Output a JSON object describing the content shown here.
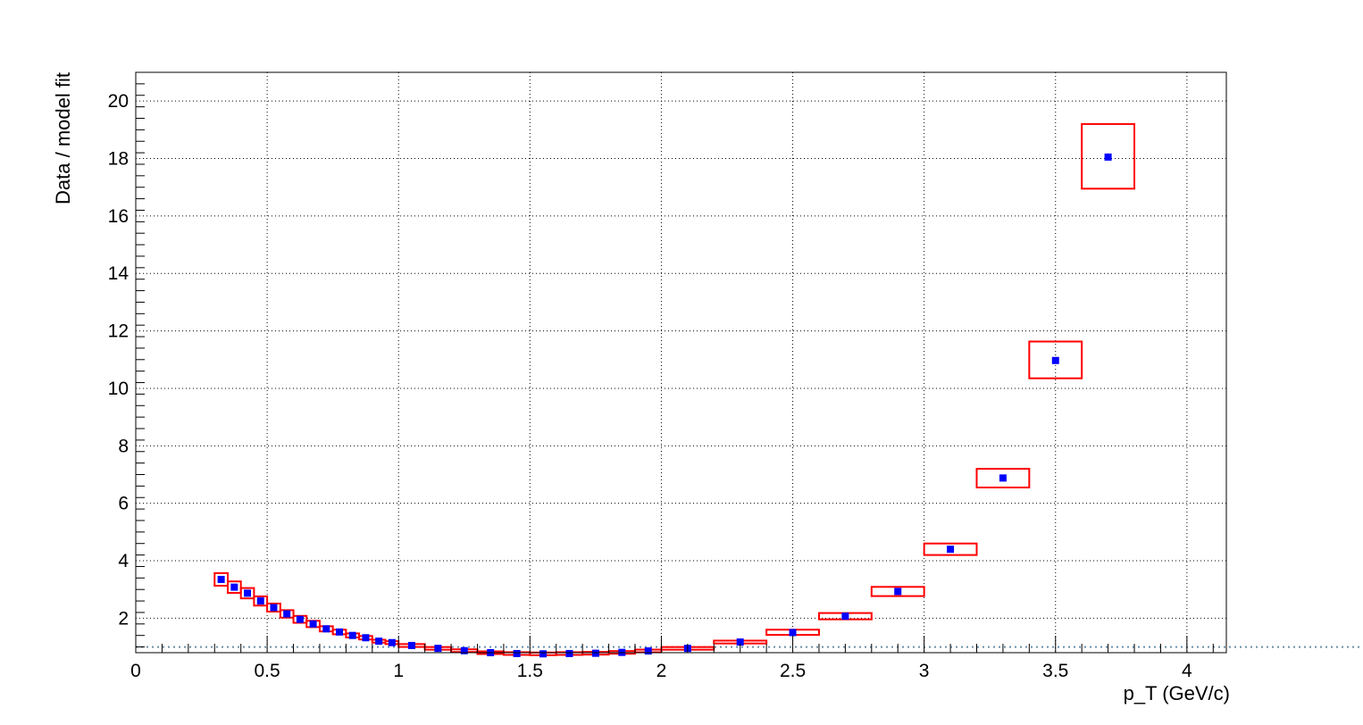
{
  "chart_data": {
    "type": "scatter",
    "xlabel": "p_T (GeV/c)",
    "ylabel": "Data / model fit",
    "xlim": [
      0,
      4.15
    ],
    "ylim": [
      0.8,
      21.0
    ],
    "reference_line": 1.0,
    "grid": true,
    "xticks": [
      0,
      0.5,
      1,
      1.5,
      2,
      2.5,
      3,
      3.5,
      4
    ],
    "xtick_labels": [
      "0",
      "0.5",
      "1",
      "1.5",
      "2",
      "2.5",
      "3",
      "3.5",
      "4"
    ],
    "yticks": [
      2,
      4,
      6,
      8,
      10,
      12,
      14,
      16,
      18,
      20
    ],
    "ytick_labels": [
      "2",
      "4",
      "6",
      "8",
      "10",
      "12",
      "14",
      "16",
      "18",
      "20"
    ],
    "series": [
      {
        "marker_color": "#0000ff",
        "box_color": "#ff0000",
        "points": [
          {
            "x": 0.325,
            "y": 3.35,
            "xlo": 0.3,
            "xhi": 0.35,
            "ylo": 3.13,
            "yhi": 3.57
          },
          {
            "x": 0.375,
            "y": 3.08,
            "xlo": 0.35,
            "xhi": 0.4,
            "ylo": 2.88,
            "yhi": 3.28
          },
          {
            "x": 0.425,
            "y": 2.87,
            "xlo": 0.4,
            "xhi": 0.45,
            "ylo": 2.69,
            "yhi": 3.05
          },
          {
            "x": 0.475,
            "y": 2.6,
            "xlo": 0.45,
            "xhi": 0.5,
            "ylo": 2.44,
            "yhi": 2.76
          },
          {
            "x": 0.525,
            "y": 2.37,
            "xlo": 0.5,
            "xhi": 0.55,
            "ylo": 2.23,
            "yhi": 2.51
          },
          {
            "x": 0.575,
            "y": 2.15,
            "xlo": 0.55,
            "xhi": 0.6,
            "ylo": 2.02,
            "yhi": 2.28
          },
          {
            "x": 0.625,
            "y": 1.96,
            "xlo": 0.6,
            "xhi": 0.65,
            "ylo": 1.84,
            "yhi": 2.08
          },
          {
            "x": 0.675,
            "y": 1.8,
            "xlo": 0.65,
            "xhi": 0.7,
            "ylo": 1.69,
            "yhi": 1.91
          },
          {
            "x": 0.725,
            "y": 1.63,
            "xlo": 0.7,
            "xhi": 0.75,
            "ylo": 1.54,
            "yhi": 1.72
          },
          {
            "x": 0.775,
            "y": 1.52,
            "xlo": 0.75,
            "xhi": 0.8,
            "ylo": 1.44,
            "yhi": 1.6
          },
          {
            "x": 0.825,
            "y": 1.4,
            "xlo": 0.8,
            "xhi": 0.85,
            "ylo": 1.33,
            "yhi": 1.47
          },
          {
            "x": 0.875,
            "y": 1.32,
            "xlo": 0.85,
            "xhi": 0.9,
            "ylo": 1.26,
            "yhi": 1.38
          },
          {
            "x": 0.925,
            "y": 1.2,
            "xlo": 0.9,
            "xhi": 0.95,
            "ylo": 1.15,
            "yhi": 1.25
          },
          {
            "x": 0.975,
            "y": 1.15,
            "xlo": 0.95,
            "xhi": 1.0,
            "ylo": 1.1,
            "yhi": 1.2
          },
          {
            "x": 1.05,
            "y": 1.05,
            "xlo": 1.0,
            "xhi": 1.1,
            "ylo": 1.0,
            "yhi": 1.1
          },
          {
            "x": 1.15,
            "y": 0.95,
            "xlo": 1.1,
            "xhi": 1.2,
            "ylo": 0.91,
            "yhi": 0.99
          },
          {
            "x": 1.25,
            "y": 0.87,
            "xlo": 1.2,
            "xhi": 1.3,
            "ylo": 0.83,
            "yhi": 0.91
          },
          {
            "x": 1.35,
            "y": 0.8,
            "xlo": 1.3,
            "xhi": 1.4,
            "ylo": 0.77,
            "yhi": 0.83
          },
          {
            "x": 1.45,
            "y": 0.77,
            "xlo": 1.4,
            "xhi": 1.5,
            "ylo": 0.74,
            "yhi": 0.8
          },
          {
            "x": 1.55,
            "y": 0.76,
            "xlo": 1.5,
            "xhi": 1.6,
            "ylo": 0.73,
            "yhi": 0.79
          },
          {
            "x": 1.65,
            "y": 0.77,
            "xlo": 1.6,
            "xhi": 1.7,
            "ylo": 0.74,
            "yhi": 0.8
          },
          {
            "x": 1.75,
            "y": 0.78,
            "xlo": 1.7,
            "xhi": 1.8,
            "ylo": 0.75,
            "yhi": 0.81
          },
          {
            "x": 1.85,
            "y": 0.81,
            "xlo": 1.8,
            "xhi": 1.9,
            "ylo": 0.78,
            "yhi": 0.84
          },
          {
            "x": 1.95,
            "y": 0.86,
            "xlo": 1.9,
            "xhi": 2.0,
            "ylo": 0.83,
            "yhi": 0.89
          },
          {
            "x": 2.1,
            "y": 0.95,
            "xlo": 2.0,
            "xhi": 2.2,
            "ylo": 0.91,
            "yhi": 0.99
          },
          {
            "x": 2.3,
            "y": 1.17,
            "xlo": 2.2,
            "xhi": 2.4,
            "ylo": 1.12,
            "yhi": 1.22
          },
          {
            "x": 2.5,
            "y": 1.5,
            "xlo": 2.4,
            "xhi": 2.6,
            "ylo": 1.42,
            "yhi": 1.6
          },
          {
            "x": 2.7,
            "y": 2.07,
            "xlo": 2.6,
            "xhi": 2.8,
            "ylo": 1.96,
            "yhi": 2.18
          },
          {
            "x": 2.9,
            "y": 2.93,
            "xlo": 2.8,
            "xhi": 3.0,
            "ylo": 2.77,
            "yhi": 3.09
          },
          {
            "x": 3.1,
            "y": 4.4,
            "xlo": 3.0,
            "xhi": 3.2,
            "ylo": 4.2,
            "yhi": 4.6
          },
          {
            "x": 3.3,
            "y": 6.88,
            "xlo": 3.2,
            "xhi": 3.4,
            "ylo": 6.55,
            "yhi": 7.2
          },
          {
            "x": 3.5,
            "y": 10.97,
            "xlo": 3.4,
            "xhi": 3.6,
            "ylo": 10.35,
            "yhi": 11.63
          },
          {
            "x": 3.7,
            "y": 18.05,
            "xlo": 3.6,
            "xhi": 3.8,
            "ylo": 16.95,
            "yhi": 19.2
          }
        ]
      }
    ]
  }
}
